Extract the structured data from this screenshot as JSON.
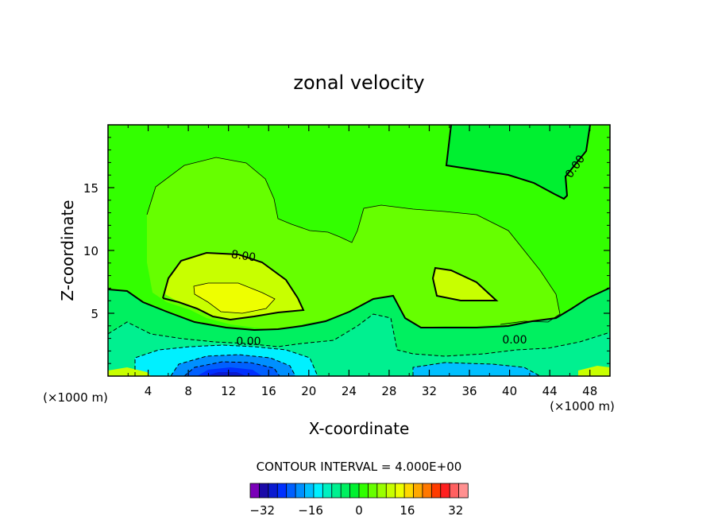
{
  "chart_data": {
    "type": "heatmap",
    "subtype": "filled-contour",
    "title": "zonal velocity",
    "xlabel": "X-coordinate",
    "ylabel": "Z-coordinate",
    "x_unit_left": "(×1000 m)",
    "x_unit_right": "(×1000 m)",
    "xlim": [
      0,
      50
    ],
    "ylim": [
      0,
      20
    ],
    "xticks": [
      4,
      8,
      12,
      16,
      20,
      24,
      28,
      32,
      36,
      40,
      44,
      48
    ],
    "yticks": [
      5,
      10,
      15
    ],
    "contour_interval_text": "CONTOUR INTERVAL = 4.000E+00",
    "contour_interval": 4.0,
    "contour_labels": [
      {
        "text": "8.00",
        "x": 13.5,
        "y": 9.6
      },
      {
        "text": "0.00",
        "x": 14.0,
        "y": 2.8
      },
      {
        "text": "0.00",
        "x": 40.5,
        "y": 2.9
      },
      {
        "text": "0.00",
        "x": 46.5,
        "y": 16.7
      }
    ],
    "colorbar": {
      "min": -36,
      "max": 36,
      "step": 4,
      "tick_labels": [
        "−32",
        "−16",
        "0",
        "16",
        "32"
      ],
      "tick_values": [
        -32,
        -16,
        0,
        16,
        32
      ],
      "colors": [
        "#7a00b8",
        "#1a0aa8",
        "#0a1ad0",
        "#0030ff",
        "#0060ff",
        "#0090ff",
        "#00c0ff",
        "#00f0ff",
        "#00f0c0",
        "#00f090",
        "#00f060",
        "#00f030",
        "#30ff00",
        "#66ff00",
        "#99ff00",
        "#c8ff00",
        "#eeff00",
        "#ffd800",
        "#ffa800",
        "#ff7800",
        "#ff3c00",
        "#ff2020",
        "#ff6060",
        "#ff9090"
      ]
    }
  }
}
